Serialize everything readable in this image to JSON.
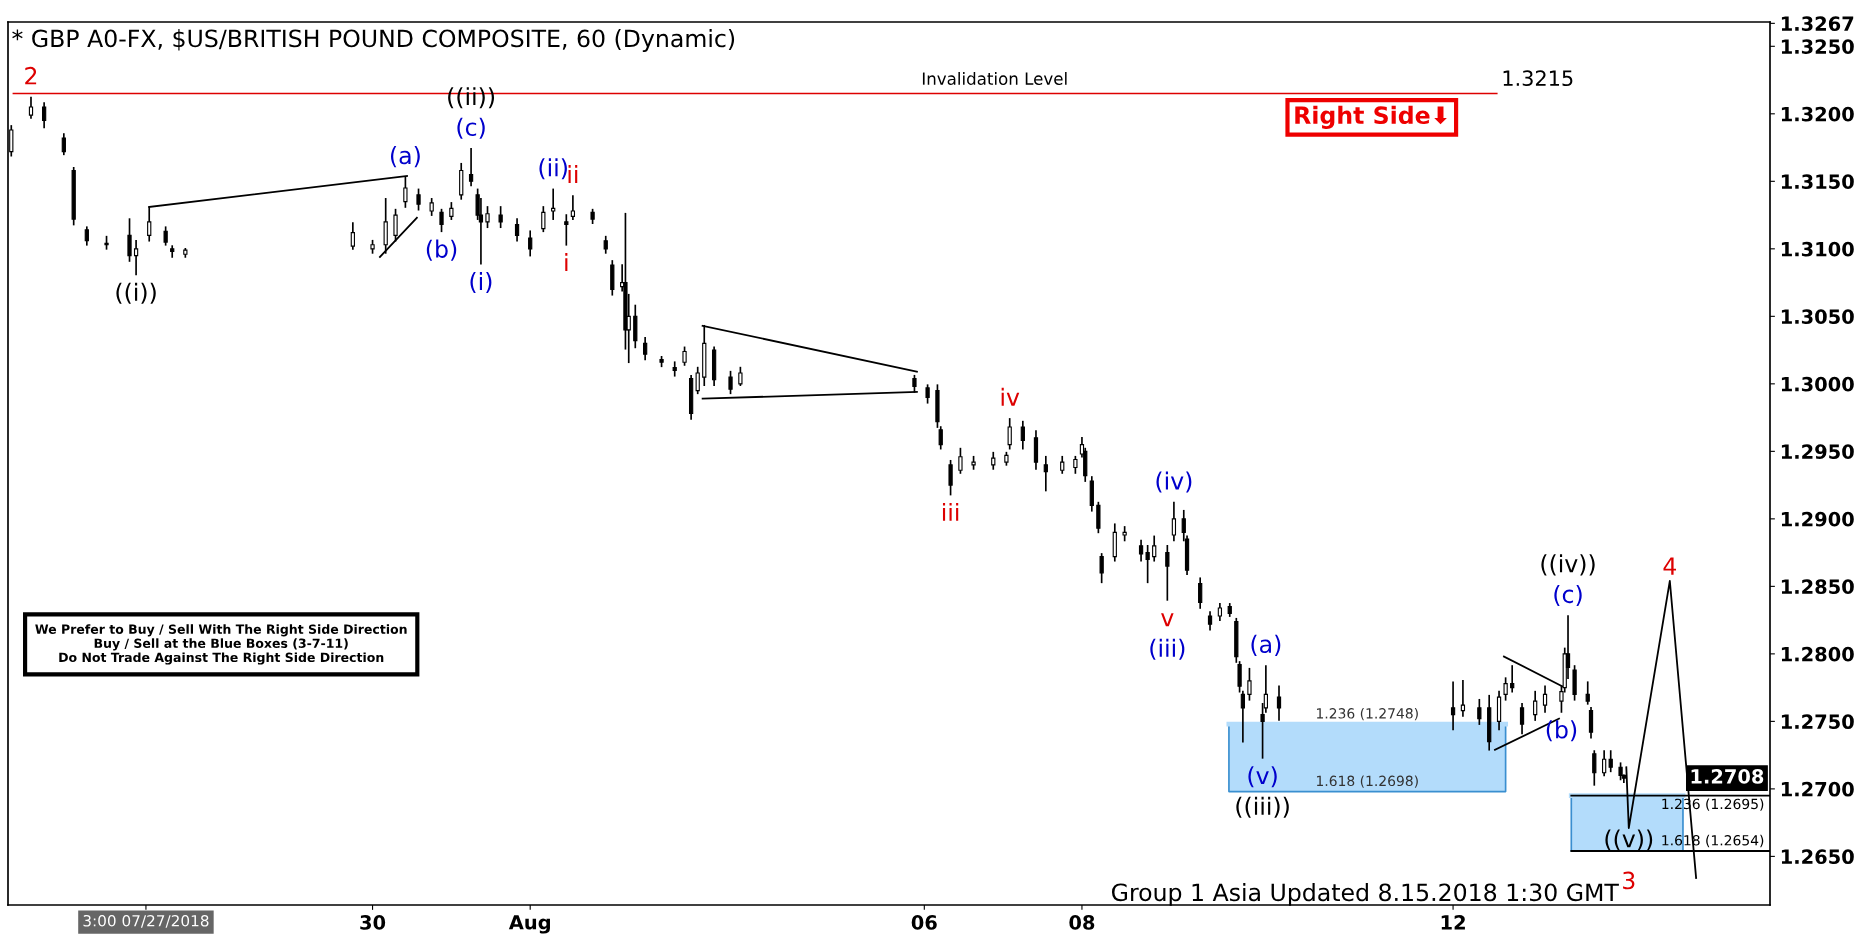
{
  "chart_data": {
    "type": "candlestick",
    "title": "* GBP A0-FX, $US/BRITISH POUND COMPOSITE, 60 (Dynamic)",
    "x": [
      "2018-07-25T10:00",
      "2018-07-25T16:00",
      "2018-07-25T20:00",
      "2018-07-26T02:00",
      "2018-07-26T05:00",
      "2018-07-26T09:00",
      "2018-07-26T15:00",
      "2018-07-26T22:00",
      "2018-07-27T00:00",
      "2018-07-27T04:00",
      "2018-07-27T09:00",
      "2018-07-27T11:00",
      "2018-07-27T15:00",
      "2018-07-29T18:00",
      "2018-07-30T00:00",
      "2018-07-30T04:00",
      "2018-07-30T07:00",
      "2018-07-30T10:00",
      "2018-07-30T14:00",
      "2018-07-30T18:00",
      "2018-07-30T21:00",
      "2018-07-31T00:00",
      "2018-07-31T03:00",
      "2018-07-31T06:00",
      "2018-07-31T08:00",
      "2018-07-31T09:00",
      "2018-07-31T11:00",
      "2018-07-31T15:00",
      "2018-07-31T20:00",
      "2018-08-01T00:00",
      "2018-08-01T04:00",
      "2018-08-01T07:00",
      "2018-08-01T11:00",
      "2018-08-01T13:00",
      "2018-08-01T19:00",
      "2018-08-01T23:00",
      "2018-08-02T01:00",
      "2018-08-02T04:00",
      "2018-08-02T05:00",
      "2018-08-02T06:00",
      "2018-08-02T08:00",
      "2018-08-02T11:00",
      "2018-08-02T16:00",
      "2018-08-02T20:00",
      "2018-08-02T23:00",
      "2018-08-03T01:00",
      "2018-08-03T03:00",
      "2018-08-03T05:00",
      "2018-08-03T08:00",
      "2018-08-03T13:00",
      "2018-08-03T16:00",
      "2018-08-05T21:00",
      "2018-08-06T01:00",
      "2018-08-06T04:00",
      "2018-08-06T05:00",
      "2018-08-06T08:00",
      "2018-08-06T11:00",
      "2018-08-06T15:00",
      "2018-08-06T21:00",
      "2018-08-07T01:00",
      "2018-08-07T02:00",
      "2018-08-07T06:00",
      "2018-08-07T10:00",
      "2018-08-07T13:00",
      "2018-08-07T18:00",
      "2018-08-07T22:00",
      "2018-08-08T00:00",
      "2018-08-08T01:00",
      "2018-08-08T03:00",
      "2018-08-08T05:00",
      "2018-08-08T06:00",
      "2018-08-08T10:00",
      "2018-08-08T13:00",
      "2018-08-08T18:00",
      "2018-08-08T20:00",
      "2018-08-08T22:00",
      "2018-08-09T02:00",
      "2018-08-09T04:00",
      "2018-08-09T07:00",
      "2018-08-09T08:00",
      "2018-08-09T12:00",
      "2018-08-09T15:00",
      "2018-08-09T18:00",
      "2018-08-09T21:00",
      "2018-08-09T23:00",
      "2018-08-10T00:00",
      "2018-08-10T01:00",
      "2018-08-10T03:00",
      "2018-08-10T07:00",
      "2018-08-10T08:00",
      "2018-08-10T12:00",
      "2018-08-12T17:00",
      "2018-08-12T20:00",
      "2018-08-13T01:00",
      "2018-08-13T04:00",
      "2018-08-13T07:00",
      "2018-08-13T09:00",
      "2018-08-13T11:00",
      "2018-08-13T14:00",
      "2018-08-13T18:00",
      "2018-08-13T21:00",
      "2018-08-14T02:00",
      "2018-08-14T03:00",
      "2018-08-14T04:00",
      "2018-08-14T06:00",
      "2018-08-14T10:00",
      "2018-08-14T11:00",
      "2018-08-14T12:00",
      "2018-08-14T15:00",
      "2018-08-14T17:00",
      "2018-08-14T20:00",
      "2018-08-14T21:00"
    ],
    "ohlc": [
      [
        1.3172,
        1.3191,
        1.3169,
        1.3188
      ],
      [
        1.3199,
        1.3212,
        1.3197,
        1.3205
      ],
      [
        1.3205,
        1.3208,
        1.319,
        1.3195
      ],
      [
        1.3182,
        1.3185,
        1.317,
        1.3172
      ],
      [
        1.3158,
        1.316,
        1.3118,
        1.3122
      ],
      [
        1.3114,
        1.3116,
        1.3103,
        1.3106
      ],
      [
        1.3104,
        1.3109,
        1.31,
        1.3103
      ],
      [
        1.311,
        1.3122,
        1.3091,
        1.3095
      ],
      [
        1.3095,
        1.3106,
        1.3081,
        1.31
      ],
      [
        1.311,
        1.3131,
        1.3106,
        1.312
      ],
      [
        1.3113,
        1.3116,
        1.3103,
        1.3105
      ],
      [
        1.31,
        1.3102,
        1.3094,
        1.3098
      ],
      [
        1.3096,
        1.31,
        1.3094,
        1.3099
      ],
      [
        1.3102,
        1.3119,
        1.31,
        1.3112
      ],
      [
        1.31,
        1.3106,
        1.3097,
        1.3103
      ],
      [
        1.3103,
        1.3137,
        1.3097,
        1.312
      ],
      [
        1.311,
        1.3129,
        1.3106,
        1.3125
      ],
      [
        1.3135,
        1.3153,
        1.3131,
        1.3145
      ],
      [
        1.314,
        1.3144,
        1.3129,
        1.3133
      ],
      [
        1.3128,
        1.3137,
        1.3125,
        1.3134
      ],
      [
        1.3127,
        1.3129,
        1.3113,
        1.3118
      ],
      [
        1.3124,
        1.3134,
        1.3122,
        1.313
      ],
      [
        1.314,
        1.3163,
        1.3137,
        1.3158
      ],
      [
        1.3155,
        1.3174,
        1.3147,
        1.315
      ],
      [
        1.314,
        1.3144,
        1.3122,
        1.3125
      ],
      [
        1.3125,
        1.3137,
        1.3089,
        1.312
      ],
      [
        1.312,
        1.3131,
        1.3116,
        1.3126
      ],
      [
        1.3125,
        1.3131,
        1.3116,
        1.312
      ],
      [
        1.3118,
        1.3122,
        1.3106,
        1.311
      ],
      [
        1.3108,
        1.3113,
        1.3095,
        1.31
      ],
      [
        1.3115,
        1.3131,
        1.3113,
        1.3127
      ],
      [
        1.3128,
        1.3144,
        1.3122,
        1.313
      ],
      [
        1.312,
        1.3125,
        1.3103,
        1.3118
      ],
      [
        1.3124,
        1.3139,
        1.3122,
        1.3128
      ],
      [
        1.3127,
        1.3129,
        1.3119,
        1.3122
      ],
      [
        1.3106,
        1.3109,
        1.3097,
        1.31
      ],
      [
        1.3088,
        1.3091,
        1.3066,
        1.307
      ],
      [
        1.3072,
        1.3088,
        1.3069,
        1.3075
      ],
      [
        1.3075,
        1.3126,
        1.3026,
        1.304
      ],
      [
        1.304,
        1.3066,
        1.3016,
        1.305
      ],
      [
        1.305,
        1.3058,
        1.3027,
        1.3032
      ],
      [
        1.303,
        1.3034,
        1.3018,
        1.3022
      ],
      [
        1.3018,
        1.302,
        1.3013,
        1.3016
      ],
      [
        1.3012,
        1.3016,
        1.3006,
        1.301
      ],
      [
        1.3016,
        1.3027,
        1.3014,
        1.3024
      ],
      [
        1.3004,
        1.3006,
        1.2974,
        1.2978
      ],
      [
        1.2995,
        1.3012,
        1.2993,
        1.3008
      ],
      [
        1.3005,
        1.3043,
        1.2999,
        1.303
      ],
      [
        1.3025,
        1.3027,
        1.2999,
        1.3003
      ],
      [
        1.3005,
        1.3009,
        1.2993,
        1.2996
      ],
      [
        1.3,
        1.3012,
        1.2999,
        1.3008
      ],
      [
        1.3004,
        1.3006,
        1.2994,
        1.2998
      ],
      [
        1.2997,
        1.2999,
        1.2986,
        1.299
      ],
      [
        1.2995,
        1.2999,
        1.2968,
        1.2972
      ],
      [
        1.2966,
        1.2968,
        1.2952,
        1.2955
      ],
      [
        1.294,
        1.2943,
        1.2918,
        1.2925
      ],
      [
        1.2936,
        1.2952,
        1.2934,
        1.2946
      ],
      [
        1.294,
        1.2946,
        1.2937,
        1.2942
      ],
      [
        1.294,
        1.2949,
        1.2937,
        1.2945
      ],
      [
        1.2942,
        1.2949,
        1.294,
        1.2947
      ],
      [
        1.2955,
        1.2974,
        1.2952,
        1.2968
      ],
      [
        1.2968,
        1.2972,
        1.2952,
        1.2958
      ],
      [
        1.296,
        1.2965,
        1.2937,
        1.2942
      ],
      [
        1.294,
        1.2946,
        1.2921,
        1.2935
      ],
      [
        1.2936,
        1.2946,
        1.2934,
        1.2942
      ],
      [
        1.2938,
        1.2946,
        1.2934,
        1.2944
      ],
      [
        1.2948,
        1.296,
        1.2946,
        1.2955
      ],
      [
        1.295,
        1.2952,
        1.2928,
        1.2932
      ],
      [
        1.2928,
        1.2931,
        1.2906,
        1.291
      ],
      [
        1.291,
        1.2912,
        1.289,
        1.2893
      ],
      [
        1.2872,
        1.2874,
        1.2853,
        1.286
      ],
      [
        1.2872,
        1.2896,
        1.2869,
        1.289
      ],
      [
        1.2888,
        1.2894,
        1.2884,
        1.289
      ],
      [
        1.288,
        1.2884,
        1.2869,
        1.2874
      ],
      [
        1.2875,
        1.288,
        1.2853,
        1.287
      ],
      [
        1.2872,
        1.2887,
        1.2869,
        1.288
      ],
      [
        1.2875,
        1.288,
        1.284,
        1.2865
      ],
      [
        1.2888,
        1.2912,
        1.2884,
        1.29
      ],
      [
        1.29,
        1.2906,
        1.2884,
        1.289
      ],
      [
        1.2885,
        1.2887,
        1.2859,
        1.2862
      ],
      [
        1.2852,
        1.2856,
        1.2834,
        1.2838
      ],
      [
        1.2828,
        1.2831,
        1.2818,
        1.2822
      ],
      [
        1.2828,
        1.2837,
        1.2825,
        1.2834
      ],
      [
        1.2835,
        1.2837,
        1.2828,
        1.283
      ],
      [
        1.2824,
        1.2826,
        1.2794,
        1.2798
      ],
      [
        1.2792,
        1.2794,
        1.2772,
        1.2776
      ],
      [
        1.277,
        1.2772,
        1.2735,
        1.276
      ],
      [
        1.277,
        1.2789,
        1.2766,
        1.278
      ],
      [
        1.2755,
        1.2763,
        1.2723,
        1.275
      ],
      [
        1.276,
        1.2791,
        1.2757,
        1.277
      ],
      [
        1.2768,
        1.2776,
        1.2751,
        1.276
      ],
      [
        1.276,
        1.2779,
        1.2744,
        1.2755
      ],
      [
        1.2758,
        1.278,
        1.2754,
        1.2762
      ],
      [
        1.276,
        1.2766,
        1.2748,
        1.2752
      ],
      [
        1.276,
        1.2769,
        1.2729,
        1.2735
      ],
      [
        1.275,
        1.2772,
        1.2744,
        1.2768
      ],
      [
        1.277,
        1.2782,
        1.2766,
        1.2778
      ],
      [
        1.2778,
        1.2791,
        1.2772,
        1.2775
      ],
      [
        1.276,
        1.2763,
        1.2741,
        1.2748
      ],
      [
        1.2755,
        1.2772,
        1.2751,
        1.2765
      ],
      [
        1.2762,
        1.2776,
        1.2757,
        1.277
      ],
      [
        1.2765,
        1.2776,
        1.2757,
        1.2772
      ],
      [
        1.2775,
        1.2804,
        1.2772,
        1.28
      ],
      [
        1.28,
        1.2828,
        1.2782,
        1.279
      ],
      [
        1.2788,
        1.2791,
        1.2766,
        1.277
      ],
      [
        1.277,
        1.2779,
        1.2763,
        1.2765
      ],
      [
        1.2758,
        1.276,
        1.2738,
        1.2742
      ],
      [
        1.2726,
        1.2728,
        1.2703,
        1.2712
      ],
      [
        1.2712,
        1.2728,
        1.271,
        1.2722
      ],
      [
        1.2722,
        1.2728,
        1.2713,
        1.2716
      ],
      [
        1.2716,
        1.2719,
        1.2707,
        1.271
      ],
      [
        1.271,
        1.271,
        1.2705,
        1.2708
      ]
    ],
    "color": "#000000",
    "series": [
      {
        "type": "line",
        "color": "#b3dcfb",
        "x": [
          "2018-08-09T20:45",
          "2018-08-13T09:00"
        ],
        "values": [
          1.2748,
          1.2748
        ],
        "lower": [
          1.2698,
          1.2698
        ],
        "upper": [
          1.2748,
          1.2748
        ]
      },
      {
        "type": "line",
        "color": "#b3dcfb",
        "x": [
          "2018-08-14T05:00",
          "2018-08-15T15:00"
        ],
        "values": [
          1.2695,
          1.2695
        ],
        "lower": [
          1.2654,
          1.2654
        ],
        "upper": [
          1.2695,
          1.2695
        ]
      },
      {
        "type": "line",
        "color": "#000000",
        "x": [
          "2018-08-14T05:00",
          "2018-08-16T17:30"
        ],
        "values": [
          1.2695,
          1.2695
        ]
      },
      {
        "type": "line",
        "color": "#000000",
        "x": [
          "2018-08-14T05:00",
          "2018-08-16T17:30"
        ],
        "values": [
          1.2654,
          1.2654
        ]
      },
      {
        "type": "line",
        "color": "#000000",
        "x": [
          "2018-08-14T21:45",
          "2018-08-14T22:30",
          "2018-08-15T11:00",
          "2018-08-15T19:00"
        ],
        "values": [
          1.2716,
          1.2671,
          1.2854,
          1.2634
        ]
      },
      {
        "type": "line",
        "color": "#000000",
        "x": [
          "2018-07-27T04:00",
          "2018-07-30T10:30"
        ],
        "values": [
          1.3131,
          1.3154
        ]
      },
      {
        "type": "line",
        "color": "#000000",
        "x": [
          "2018-07-30T02:15",
          "2018-07-30T13:30"
        ],
        "values": [
          1.3094,
          1.3123
        ]
      },
      {
        "type": "line",
        "color": "#000000",
        "x": [
          "2018-08-03T04:30",
          "2018-08-05T21:45"
        ],
        "values": [
          1.3043,
          1.3009
        ]
      },
      {
        "type": "line",
        "color": "#000000",
        "x": [
          "2018-08-03T04:30",
          "2018-08-05T21:45"
        ],
        "values": [
          1.2989,
          1.2994
        ]
      },
      {
        "type": "line",
        "color": "#000000",
        "x": [
          "2018-08-13T08:30",
          "2018-08-14T02:15"
        ],
        "values": [
          1.2798,
          1.2776
        ]
      },
      {
        "type": "line",
        "color": "#000000",
        "x": [
          "2018-08-13T05:45",
          "2018-08-14T01:15"
        ],
        "values": [
          1.2729,
          1.2752
        ]
      }
    ],
    "xlim": [
      "2018-07-25T09:00",
      "2018-08-16T17:30"
    ],
    "xticks": [
      {
        "value": "2018-07-27T03:00",
        "label": "3:00 07/27/2018"
      },
      {
        "value": "2018-07-30",
        "label": "30"
      },
      {
        "value": "2018-08-01",
        "label": "Aug"
      },
      {
        "value": "2018-08-06",
        "label": "06"
      },
      {
        "value": "2018-08-08",
        "label": "08"
      },
      {
        "value": "2018-08-12T17:00",
        "label": "12"
      }
    ],
    "ylim": [
      1.2614,
      1.3268
    ],
    "yticks": [
      {
        "value": 1.265,
        "label": "1.2650"
      },
      {
        "value": 1.27,
        "label": "1.2700"
      },
      {
        "value": 1.275,
        "label": "1.2750"
      },
      {
        "value": 1.28,
        "label": "1.2800"
      },
      {
        "value": 1.285,
        "label": "1.2850"
      },
      {
        "value": 1.29,
        "label": "1.2900"
      },
      {
        "value": 1.295,
        "label": "1.2950"
      },
      {
        "value": 1.3,
        "label": "1.3000"
      },
      {
        "value": 1.305,
        "label": "1.3050"
      },
      {
        "value": 1.31,
        "label": "1.3100"
      },
      {
        "value": 1.315,
        "label": "1.3150"
      },
      {
        "value": 1.32,
        "label": "1.3200"
      },
      {
        "value": 1.325,
        "label": "1.3250"
      },
      {
        "value": 1.3267,
        "label": "1.3267"
      }
    ],
    "ref_lines": [
      {
        "axis": "y",
        "value": 1.3215,
        "label": "Invalidation Level",
        "color": "#dd0000"
      }
    ],
    "grid": false,
    "annotations": [
      "2",
      "((i))",
      "(a)",
      "(b)",
      "(c)",
      "((ii))",
      "(i)",
      "(ii)",
      "i",
      "ii",
      "iii",
      "iv",
      "(iv)",
      "v",
      "(iii)",
      "(a)",
      "(v)",
      "((iii))",
      "((iv))",
      "(c)",
      "(b)",
      "((v))",
      "3",
      "4",
      "1.236 (1.2748)",
      "1.618 (1.2698)",
      "1.236 (1.2695)",
      "1.618 (1.2654)",
      "Right Side⬇",
      "We Prefer to Buy / Sell With The Right Side Direction\nBuy / Sell at the Blue Boxes (3-7-11)\nDo Not Trade Against The Right Side Direction",
      "Group 1 Asia Updated 8.15.2018 1:30 GMT",
      "1.3215",
      "1.2708"
    ]
  }
}
